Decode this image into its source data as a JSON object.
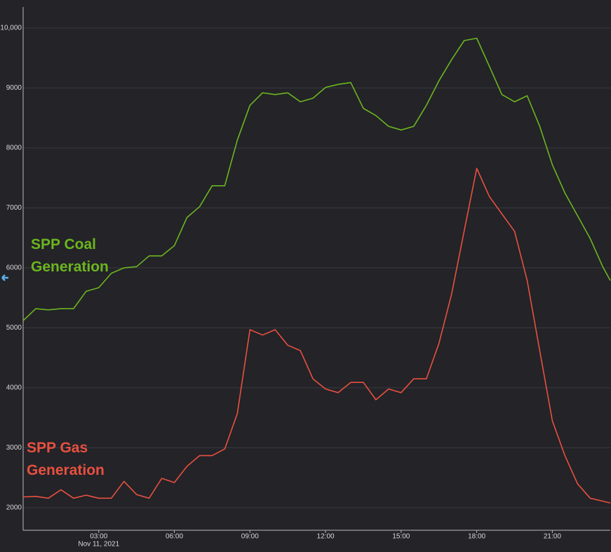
{
  "chart_data": {
    "type": "line",
    "x": [
      0,
      0.5,
      1,
      1.5,
      2,
      2.5,
      3,
      3.5,
      4,
      4.5,
      5,
      5.5,
      6,
      6.5,
      7,
      7.5,
      8,
      8.5,
      9,
      9.5,
      10,
      10.5,
      11,
      11.5,
      12,
      12.5,
      13,
      13.5,
      14,
      14.5,
      15,
      15.5,
      16,
      16.5,
      17,
      17.5,
      18,
      18.5,
      19,
      19.5,
      20,
      20.5,
      21,
      21.5,
      22,
      22.5,
      23,
      23.3
    ],
    "series": [
      {
        "name": "SPP Coal Generation",
        "color": "#6cb51f",
        "values": [
          5120,
          5320,
          5300,
          5320,
          5320,
          5610,
          5670,
          5910,
          6000,
          6020,
          6200,
          6200,
          6370,
          6840,
          7020,
          7370,
          7370,
          8130,
          8710,
          8920,
          8890,
          8920,
          8770,
          8830,
          9010,
          9060,
          9090,
          8660,
          8540,
          8360,
          8300,
          8360,
          8710,
          9120,
          9470,
          9790,
          9830,
          9360,
          8890,
          8770,
          8870,
          8360,
          7720,
          7250,
          6870,
          6490,
          6020,
          5790
        ]
      },
      {
        "name": "SPP Gas Generation",
        "color": "#e8503f",
        "values": [
          2180,
          2190,
          2160,
          2300,
          2160,
          2210,
          2160,
          2160,
          2440,
          2220,
          2160,
          2490,
          2420,
          2690,
          2870,
          2870,
          2980,
          3570,
          4970,
          4880,
          4970,
          4710,
          4620,
          4150,
          3980,
          3920,
          4090,
          4090,
          3800,
          3980,
          3920,
          4150,
          4150,
          4740,
          5560,
          6610,
          7660,
          7190,
          6900,
          6610,
          5790,
          4620,
          3450,
          2870,
          2400,
          2160,
          2110,
          2080
        ]
      }
    ],
    "xlim": [
      0,
      23.3
    ],
    "xticks": [
      {
        "value": 3,
        "label": "03:00"
      },
      {
        "value": 6,
        "label": "06:00"
      },
      {
        "value": 9,
        "label": "09:00"
      },
      {
        "value": 12,
        "label": "12:00"
      },
      {
        "value": 15,
        "label": "15:00"
      },
      {
        "value": 18,
        "label": "18:00"
      },
      {
        "value": 21,
        "label": "21:00"
      }
    ],
    "date_label": "Nov 11, 2021",
    "ylim": [
      1625,
      10350
    ],
    "yticks": [
      2000,
      3000,
      4000,
      5000,
      6000,
      7000,
      8000,
      9000,
      {
        "value": 10000,
        "label": "10,000"
      }
    ],
    "grid": true
  }
}
